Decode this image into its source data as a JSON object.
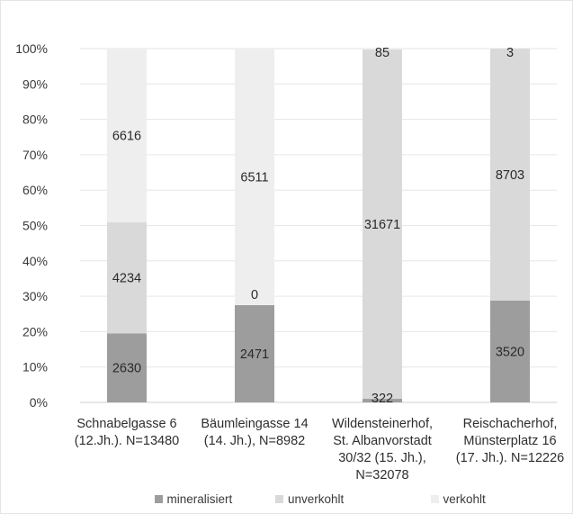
{
  "chart_data": {
    "type": "bar",
    "stacked": "percent",
    "categories": [
      [
        "Schnabelgasse 6",
        "(12.Jh.). N=13480"
      ],
      [
        "Bäumleingasse 14",
        "(14. Jh.), N=8982"
      ],
      [
        "Wildensteinerhof,",
        "St. Albanvorstadt",
        "30/32 (15. Jh.),",
        "N=32078"
      ],
      [
        "Reischacherhof,",
        "Münsterplatz 16",
        "(17. Jh.). N=12226"
      ]
    ],
    "series": [
      {
        "name": "mineralisiert",
        "color": "#9d9d9d",
        "values": [
          2630,
          2471,
          322,
          3520
        ]
      },
      {
        "name": "unverkohlt",
        "color": "#d9d9d9",
        "values": [
          4234,
          0,
          31671,
          8703
        ]
      },
      {
        "name": "verkohlt",
        "color": "#eeeeee",
        "values": [
          6616,
          6511,
          85,
          3
        ]
      }
    ],
    "y_tick_labels": [
      "0%",
      "10%",
      "20%",
      "30%",
      "40%",
      "50%",
      "60%",
      "70%",
      "80%",
      "90%",
      "100%"
    ],
    "ylim": [
      0,
      100
    ],
    "grid": true,
    "legend_position": "bottom",
    "title": "",
    "xlabel": "",
    "ylabel": ""
  }
}
